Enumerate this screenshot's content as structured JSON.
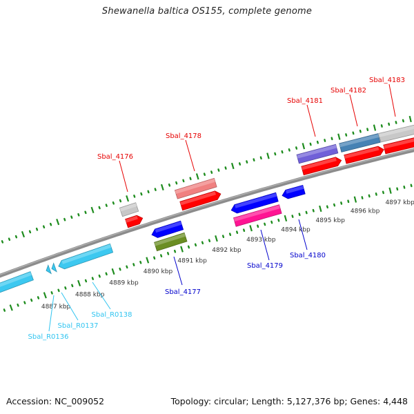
{
  "title": "Shewanella baltica OS155, complete genome",
  "footer": {
    "accession": "Accession: NC_009052",
    "summary": "Topology: circular; Length: 5,127,376 bp; Genes: 4,448"
  },
  "colors": {
    "backbone": "#8c8c8c",
    "ticks": "#1e8c1e",
    "forward_label": "#e60000",
    "reverse_label": "#0000cc",
    "rna_label": "#30c4f0"
  },
  "scale": {
    "unit": "kbp",
    "major_ticks": [
      4887,
      4888,
      4889,
      4890,
      4891,
      4892,
      4893,
      4894,
      4895,
      4896,
      4897
    ],
    "tick_labels": [
      "4887 kbp",
      "4888 kbp",
      "4889 kbp",
      "4890 kbp",
      "4891 kbp",
      "4892 kbp",
      "4893 kbp",
      "4894 kbp",
      "4895 kbp",
      "4896 kbp",
      "4897 kbp"
    ],
    "minor_step_kbp": 0.2
  },
  "features": [
    {
      "id": "Sbal_R0135x",
      "label": "",
      "type": "rRNA",
      "strand": "reverse",
      "track": "cds",
      "start": 4885.0,
      "end": 4886.84,
      "color": "#3cc8f0",
      "shape": "box"
    },
    {
      "id": "Sbal_R0136",
      "label": "Sbal_R0136",
      "type": "tRNA",
      "strand": "reverse",
      "track": "cds",
      "start": 4887.26,
      "end": 4887.36,
      "color": "#3cc8f0",
      "shape": "arrow"
    },
    {
      "id": "Sbal_R0137",
      "label": "Sbal_R0137",
      "type": "tRNA",
      "strand": "reverse",
      "track": "cds",
      "start": 4887.42,
      "end": 4887.52,
      "color": "#3cc8f0",
      "shape": "arrow"
    },
    {
      "id": "Sbal_R0138",
      "label": "Sbal_R0138",
      "type": "rRNA",
      "strand": "reverse",
      "track": "cds",
      "start": 4887.62,
      "end": 4889.16,
      "color": "#3cc8f0",
      "shape": "arrow"
    },
    {
      "id": "Sbal_4176",
      "label": "Sbal_4176",
      "type": "CDS",
      "strand": "forward",
      "track": "cds",
      "start": 4889.77,
      "end": 4890.23,
      "color": "#ff0000",
      "shape": "arrow"
    },
    {
      "id": "Sbal_4176_cog",
      "label": "",
      "type": "COG",
      "strand": "forward",
      "track": "cog",
      "start": 4889.72,
      "end": 4890.18,
      "color": "#c8c8c8",
      "shape": "box"
    },
    {
      "id": "Sbal_4177",
      "label": "Sbal_4177",
      "type": "CDS",
      "strand": "reverse",
      "track": "cds",
      "start": 4890.33,
      "end": 4891.2,
      "color": "#0000ff",
      "shape": "arrow"
    },
    {
      "id": "Sbal_4177_cog",
      "label": "",
      "type": "COG",
      "strand": "reverse",
      "track": "cog",
      "start": 4890.33,
      "end": 4891.2,
      "color": "#6b8e23",
      "shape": "box"
    },
    {
      "id": "Sbal_4178",
      "label": "Sbal_4178",
      "type": "CDS",
      "strand": "forward",
      "track": "cds",
      "start": 4891.34,
      "end": 4892.47,
      "color": "#ff0000",
      "shape": "arrow"
    },
    {
      "id": "Sbal_4178_cog",
      "label": "",
      "type": "COG",
      "strand": "forward",
      "track": "cog",
      "start": 4891.3,
      "end": 4892.42,
      "color": "#f08080",
      "shape": "box"
    },
    {
      "id": "Sbal_4179",
      "label": "Sbal_4179",
      "type": "CDS",
      "strand": "reverse",
      "track": "cds",
      "start": 4892.62,
      "end": 4893.93,
      "color": "#0000ff",
      "shape": "arrow"
    },
    {
      "id": "Sbal_4179_cog",
      "label": "",
      "type": "COG",
      "strand": "reverse",
      "track": "cog",
      "start": 4892.62,
      "end": 4893.93,
      "color": "#ff1493",
      "shape": "box"
    },
    {
      "id": "Sbal_4180",
      "label": "Sbal_4180",
      "type": "CDS",
      "strand": "reverse",
      "track": "cds",
      "start": 4894.08,
      "end": 4894.7,
      "color": "#0000ff",
      "shape": "arrow"
    },
    {
      "id": "Sbal_4181",
      "label": "Sbal_4181",
      "type": "CDS",
      "strand": "forward",
      "track": "cds",
      "start": 4894.8,
      "end": 4895.9,
      "color": "#ff0000",
      "shape": "arrow"
    },
    {
      "id": "Sbal_4181_cog",
      "label": "",
      "type": "COG",
      "strand": "forward",
      "track": "cog",
      "start": 4894.76,
      "end": 4895.86,
      "color": "#7060d8",
      "shape": "box"
    },
    {
      "id": "Sbal_4182",
      "label": "Sbal_4182",
      "type": "CDS",
      "strand": "forward",
      "track": "cds",
      "start": 4896.01,
      "end": 4897.1,
      "color": "#ff0000",
      "shape": "arrow"
    },
    {
      "id": "Sbal_4182_cog",
      "label": "",
      "type": "COG",
      "strand": "forward",
      "track": "cog",
      "start": 4895.96,
      "end": 4897.05,
      "color": "#4682b4",
      "shape": "box"
    },
    {
      "id": "Sbal_4183",
      "label": "Sbal_4183",
      "type": "CDS",
      "strand": "forward",
      "track": "cds",
      "start": 4897.12,
      "end": 4898.8,
      "color": "#ff0000",
      "shape": "arrow"
    },
    {
      "id": "Sbal_4183_cog",
      "label": "",
      "type": "COG",
      "strand": "forward",
      "track": "cog",
      "start": 4897.07,
      "end": 4898.8,
      "color": "#c8c8c8",
      "shape": "box"
    }
  ],
  "labels": [
    {
      "text": "Sbal_4176",
      "kind": "forward"
    },
    {
      "text": "Sbal_4178",
      "kind": "forward"
    },
    {
      "text": "Sbal_4181",
      "kind": "forward"
    },
    {
      "text": "Sbal_4182",
      "kind": "forward"
    },
    {
      "text": "Sbal_4183",
      "kind": "forward"
    },
    {
      "text": "Sbal_4177",
      "kind": "reverse"
    },
    {
      "text": "Sbal_4179",
      "kind": "reverse"
    },
    {
      "text": "Sbal_4180",
      "kind": "reverse"
    },
    {
      "text": "Sbal_R0138",
      "kind": "rna"
    },
    {
      "text": "Sbal_R0137",
      "kind": "rna"
    },
    {
      "text": "Sbal_R0136",
      "kind": "rna"
    }
  ]
}
